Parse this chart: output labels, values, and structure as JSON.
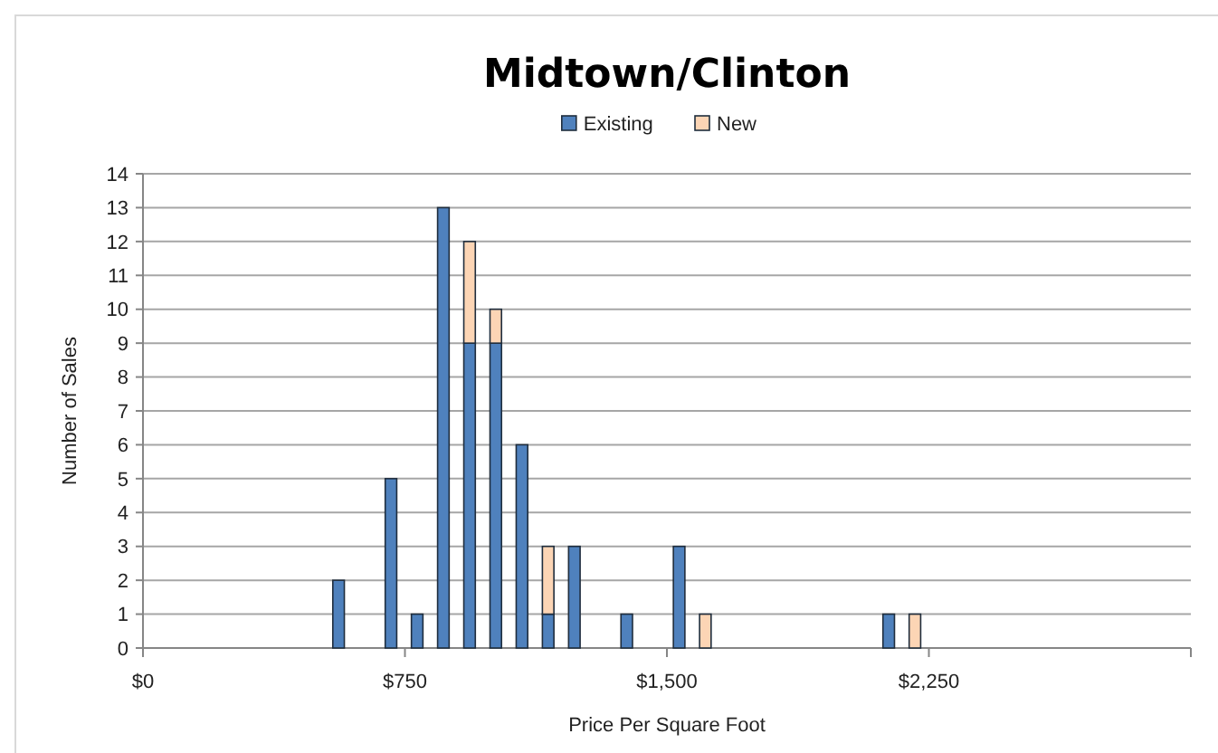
{
  "chart_data": {
    "type": "bar",
    "stacked": true,
    "title": "Midtown/Clinton",
    "xlabel": "Price Per Square Foot",
    "ylabel": "Number of Sales",
    "x": [
      560,
      710,
      785,
      860,
      935,
      1010,
      1085,
      1160,
      1235,
      1385,
      1535,
      1610,
      2135,
      2210
    ],
    "series": [
      {
        "name": "Existing",
        "color": "#4f81bd",
        "values": [
          2,
          5,
          1,
          13,
          9,
          9,
          6,
          1,
          3,
          1,
          3,
          0,
          1,
          0
        ]
      },
      {
        "name": "New",
        "color": "#fcd5b5",
        "values": [
          0,
          0,
          0,
          0,
          3,
          1,
          0,
          2,
          0,
          0,
          0,
          1,
          0,
          1
        ]
      }
    ],
    "xlim": [
      0,
      3000
    ],
    "xticks": [
      {
        "value": 0,
        "label": "$0"
      },
      {
        "value": 750,
        "label": "$750"
      },
      {
        "value": 1500,
        "label": "$1,500"
      },
      {
        "value": 2250,
        "label": "$2,250"
      },
      {
        "value": 3000,
        "label": null
      }
    ],
    "ylim": [
      0,
      14
    ],
    "yticks": [
      0,
      1,
      2,
      3,
      4,
      5,
      6,
      7,
      8,
      9,
      10,
      11,
      12,
      13,
      14
    ],
    "grid": "y",
    "legend": "top"
  }
}
